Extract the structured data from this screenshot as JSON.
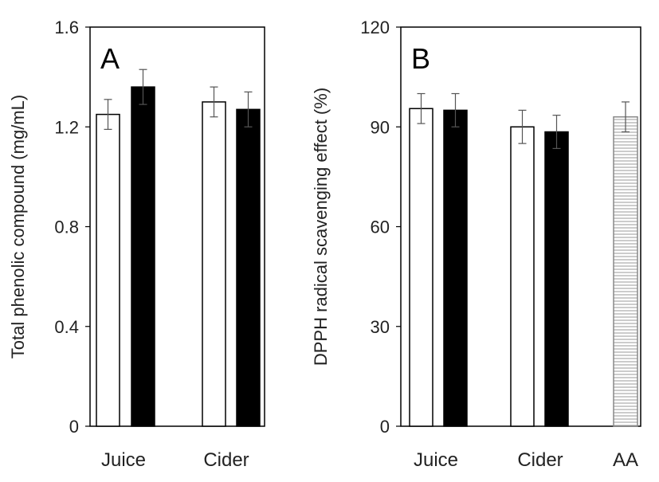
{
  "chart_data": [
    {
      "type": "bar",
      "panel_label": "A",
      "ylabel": "Total phenolic compound (mg/mL)",
      "ylim": [
        0,
        1.6
      ],
      "yticks": [
        "0",
        "0.4",
        "0.8",
        "1.2",
        "1.6"
      ],
      "categories": [
        "Juice",
        "Cider"
      ],
      "series": [
        {
          "style": "white",
          "values": [
            1.25,
            1.3
          ],
          "errors": [
            0.06,
            0.06
          ]
        },
        {
          "style": "black",
          "values": [
            1.36,
            1.27
          ],
          "errors": [
            0.07,
            0.07
          ]
        }
      ]
    },
    {
      "type": "bar",
      "panel_label": "B",
      "ylabel": "DPPH radical scavenging effect (%)",
      "ylim": [
        0,
        120
      ],
      "yticks": [
        "0",
        "30",
        "60",
        "90",
        "120"
      ],
      "categories": [
        "Juice",
        "Cider",
        "AA"
      ],
      "series": [
        {
          "style": "white",
          "values": [
            95.5,
            90.0,
            null
          ],
          "errors": [
            4.5,
            5.0,
            null
          ]
        },
        {
          "style": "black",
          "values": [
            95.0,
            88.5,
            null
          ],
          "errors": [
            5.0,
            5.0,
            null
          ]
        },
        {
          "style": "hatched",
          "values": [
            null,
            null,
            93.0
          ],
          "errors": [
            null,
            null,
            4.5
          ]
        }
      ]
    }
  ]
}
